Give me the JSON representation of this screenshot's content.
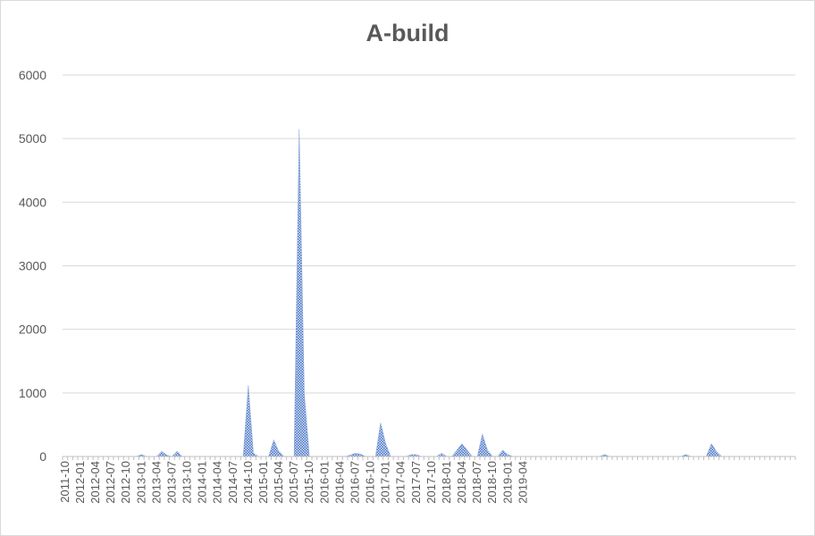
{
  "chart_data": {
    "type": "area",
    "title": "A-build",
    "xlabel": "",
    "ylabel": "",
    "ylim": [
      0,
      6000
    ],
    "yticks": [
      0,
      1000,
      2000,
      3000,
      4000,
      5000,
      6000
    ],
    "grid": true,
    "legend": "none",
    "fill_color": "#4472c4",
    "x_start": "2011-10",
    "x_tick_labels": [
      "2011-10",
      "2012-01",
      "2012-04",
      "2012-07",
      "2012-10",
      "2013-01",
      "2013-04",
      "2013-07",
      "2013-10",
      "2014-01",
      "2014-04",
      "2014-07",
      "2014-10",
      "2015-01",
      "2015-04",
      "2015-07",
      "2015-10",
      "2016-01",
      "2016-04",
      "2016-07",
      "2016-10",
      "2017-01",
      "2017-04",
      "2017-07",
      "2017-10",
      "2018-01",
      "2018-04",
      "2018-07",
      "2018-10",
      "2019-01",
      "2019-04"
    ],
    "series": [
      {
        "values": [
          0,
          0,
          0,
          0,
          0,
          0,
          0,
          0,
          0,
          0,
          0,
          0,
          0,
          0,
          0,
          30,
          0,
          0,
          0,
          80,
          20,
          0,
          80,
          0,
          0,
          0,
          0,
          0,
          0,
          0,
          0,
          0,
          0,
          0,
          0,
          0,
          1120,
          50,
          0,
          0,
          0,
          260,
          80,
          0,
          0,
          0,
          5150,
          1000,
          0,
          0,
          0,
          0,
          0,
          0,
          0,
          0,
          20,
          50,
          40,
          0,
          0,
          0,
          530,
          200,
          0,
          0,
          0,
          0,
          30,
          30,
          0,
          0,
          0,
          0,
          50,
          0,
          0,
          100,
          200,
          100,
          0,
          0,
          350,
          100,
          0,
          0,
          100,
          30,
          0,
          0,
          0,
          0,
          0,
          0,
          0,
          0,
          0,
          0,
          0,
          0,
          0,
          0,
          0,
          0,
          0,
          0,
          30,
          0,
          0,
          0,
          0,
          0,
          0,
          0,
          0,
          0,
          0,
          0,
          0,
          0,
          0,
          0,
          30,
          0,
          0,
          0,
          0,
          200,
          80,
          0,
          0,
          0,
          0,
          0,
          0,
          0,
          0,
          0,
          0,
          0,
          0,
          0,
          0,
          0
        ]
      }
    ]
  }
}
